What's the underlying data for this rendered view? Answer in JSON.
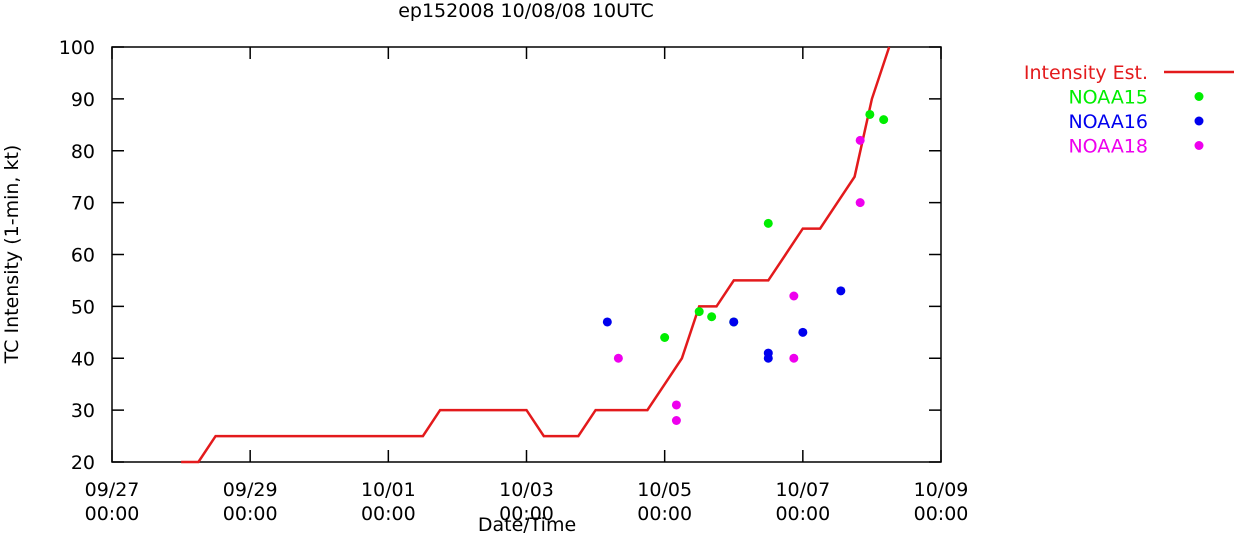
{
  "chart_data": {
    "type": "line",
    "title": "ep152008 10/08/08 10UTC",
    "xlabel": "Date/Time",
    "ylabel": "TC Intensity (1-min, kt)",
    "xlim": [
      0,
      12
    ],
    "ylim": [
      20,
      100
    ],
    "x_unit": "days since 09/27 00:00",
    "yticks": [
      20,
      30,
      40,
      50,
      60,
      70,
      80,
      90,
      100
    ],
    "xticks": [
      {
        "value": 0,
        "line1": "09/27",
        "line2": "00:00"
      },
      {
        "value": 2,
        "line1": "09/29",
        "line2": "00:00"
      },
      {
        "value": 4,
        "line1": "10/01",
        "line2": "00:00"
      },
      {
        "value": 6,
        "line1": "10/03",
        "line2": "00:00"
      },
      {
        "value": 8,
        "line1": "10/05",
        "line2": "00:00"
      },
      {
        "value": 10,
        "line1": "10/07",
        "line2": "00:00"
      },
      {
        "value": 12,
        "line1": "10/09",
        "line2": "00:00"
      }
    ],
    "legend_position": "right",
    "series": [
      {
        "name": "Intensity Est.",
        "kind": "line",
        "color": "#e31a1c",
        "x": [
          1.0,
          1.25,
          1.5,
          1.75,
          2.0,
          2.25,
          2.5,
          2.75,
          3.0,
          3.25,
          3.5,
          3.75,
          4.0,
          4.25,
          4.5,
          4.75,
          5.0,
          5.25,
          5.5,
          5.75,
          6.0,
          6.25,
          6.5,
          6.75,
          7.0,
          7.25,
          7.5,
          7.75,
          8.0,
          8.25,
          8.5,
          8.75,
          9.0,
          9.25,
          9.5,
          9.75,
          10.0,
          10.25,
          10.5,
          10.75,
          11.0,
          11.25
        ],
        "y": [
          20,
          20,
          25,
          25,
          25,
          25,
          25,
          25,
          25,
          25,
          25,
          25,
          25,
          25,
          25,
          30,
          30,
          30,
          30,
          30,
          30,
          25,
          25,
          25,
          30,
          30,
          30,
          30,
          35,
          40,
          50,
          50,
          55,
          55,
          55,
          60,
          65,
          65,
          70,
          75,
          90,
          100
        ]
      },
      {
        "name": "NOAA15",
        "kind": "points",
        "color": "#00ee00",
        "x": [
          8.0,
          8.5,
          8.68,
          9.0,
          9.5,
          10.97,
          11.17
        ],
        "y": [
          44,
          49,
          48,
          47,
          66,
          87,
          86
        ]
      },
      {
        "name": "NOAA16",
        "kind": "points",
        "color": "#0000ee",
        "x": [
          7.17,
          9.0,
          9.5,
          9.5,
          10.0,
          10.55
        ],
        "y": [
          47,
          47,
          41,
          40,
          45,
          53
        ]
      },
      {
        "name": "NOAA18",
        "kind": "points",
        "color": "#ee00ee",
        "x": [
          7.33,
          8.17,
          8.17,
          9.87,
          9.87,
          10.83,
          10.83
        ],
        "y": [
          40,
          31,
          28,
          52,
          40,
          70,
          82
        ]
      }
    ]
  }
}
